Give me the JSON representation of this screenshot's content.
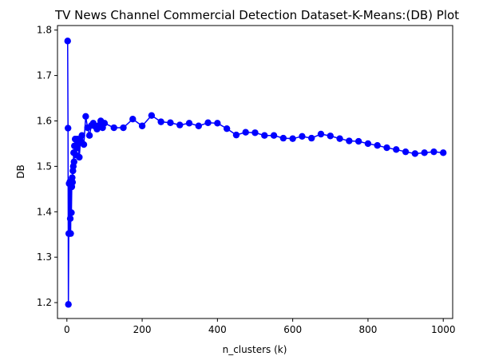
{
  "chart_data": {
    "type": "line",
    "title": "TV News Channel Commercial Detection Dataset-K-Means:(DB) Plot",
    "xlabel": "n_clusters (k)",
    "ylabel": "DB",
    "xlim": [
      -25,
      1025
    ],
    "ylim": [
      1.165,
      1.81
    ],
    "xticks": [
      0,
      200,
      400,
      600,
      800,
      1000
    ],
    "yticks": [
      1.2,
      1.3,
      1.4,
      1.5,
      1.6,
      1.7,
      1.8
    ],
    "xtick_labels": [
      "0",
      "200",
      "400",
      "600",
      "800",
      "1000"
    ],
    "ytick_labels": [
      "1.2",
      "1.3",
      "1.4",
      "1.5",
      "1.6",
      "1.7",
      "1.8"
    ],
    "grid": false,
    "series_color": "#0000ff",
    "marker": "circle",
    "x": [
      2,
      3,
      4,
      5,
      6,
      7,
      8,
      9,
      10,
      11,
      12,
      13,
      14,
      15,
      16,
      17,
      18,
      19,
      20,
      22,
      24,
      26,
      28,
      30,
      33,
      36,
      40,
      45,
      50,
      55,
      60,
      65,
      70,
      75,
      80,
      85,
      90,
      95,
      100,
      125,
      150,
      175,
      200,
      225,
      250,
      275,
      300,
      325,
      350,
      375,
      400,
      425,
      450,
      475,
      500,
      525,
      550,
      575,
      600,
      625,
      650,
      675,
      700,
      725,
      750,
      775,
      800,
      825,
      850,
      875,
      900,
      925,
      950,
      975,
      1000
    ],
    "y": [
      1.776,
      1.584,
      1.196,
      1.352,
      1.462,
      1.352,
      1.466,
      1.385,
      1.352,
      1.46,
      1.398,
      1.455,
      1.475,
      1.465,
      1.49,
      1.5,
      1.53,
      1.51,
      1.545,
      1.56,
      1.525,
      1.54,
      1.56,
      1.55,
      1.52,
      1.555,
      1.568,
      1.548,
      1.61,
      1.585,
      1.568,
      1.59,
      1.595,
      1.588,
      1.582,
      1.59,
      1.6,
      1.585,
      1.595,
      1.585,
      1.585,
      1.604,
      1.589,
      1.612,
      1.598,
      1.596,
      1.591,
      1.595,
      1.589,
      1.596,
      1.595,
      1.583,
      1.569,
      1.575,
      1.574,
      1.568,
      1.568,
      1.562,
      1.561,
      1.566,
      1.562,
      1.571,
      1.567,
      1.561,
      1.556,
      1.555,
      1.55,
      1.546,
      1.541,
      1.537,
      1.532,
      1.528,
      1.53,
      1.532,
      1.53
    ]
  }
}
